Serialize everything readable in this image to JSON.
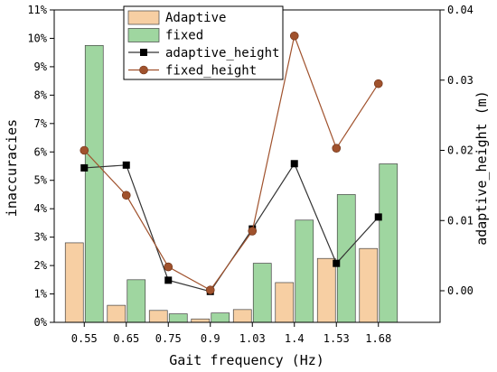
{
  "chart_data": {
    "type": "bar",
    "title": "",
    "xlabel": "Gait frequency (Hz)",
    "ylabel_left": "inaccuracies",
    "ylabel_right": "adaptive_height (m)",
    "categories": [
      "0.55",
      "0.65",
      "0.75",
      "0.9",
      "1.03",
      "1.4",
      "1.53",
      "1.68"
    ],
    "ylim_left": [
      0,
      11
    ],
    "yticks_left": [
      "0%",
      "1%",
      "2%",
      "3%",
      "4%",
      "5%",
      "6%",
      "7%",
      "8%",
      "9%",
      "10%",
      "11%"
    ],
    "ylim_right": [
      -0.0045,
      0.04
    ],
    "yticks_right": [
      {
        "value": 0.0,
        "label": "0.00"
      },
      {
        "value": 0.01,
        "label": "0.01"
      },
      {
        "value": 0.02,
        "label": "0.02"
      },
      {
        "value": 0.03,
        "label": "0.03"
      },
      {
        "value": 0.04,
        "label": "0.04"
      }
    ],
    "bar_series": [
      {
        "name": "Adaptive",
        "color": "#f7cfa3",
        "values": [
          2.8,
          0.6,
          0.42,
          0.12,
          0.45,
          1.4,
          2.25,
          2.6
        ]
      },
      {
        "name": "fixed",
        "color": "#9fd6a0",
        "values": [
          9.75,
          1.5,
          0.3,
          0.33,
          2.08,
          3.6,
          4.5,
          5.58
        ]
      }
    ],
    "line_series": [
      {
        "name": "adaptive_height",
        "color": "#333333",
        "marker": "square",
        "values": [
          0.0175,
          0.0179,
          0.0015,
          -0.0001,
          0.0088,
          0.0181,
          0.0039,
          0.0105
        ]
      },
      {
        "name": "fixed_height",
        "color": "#a0522d",
        "marker": "circle",
        "values": [
          0.02,
          0.0136,
          0.0034,
          0.0001,
          0.0085,
          0.0363,
          0.0203,
          0.0295
        ]
      }
    ],
    "legend_position": "top-center",
    "grid": false
  }
}
